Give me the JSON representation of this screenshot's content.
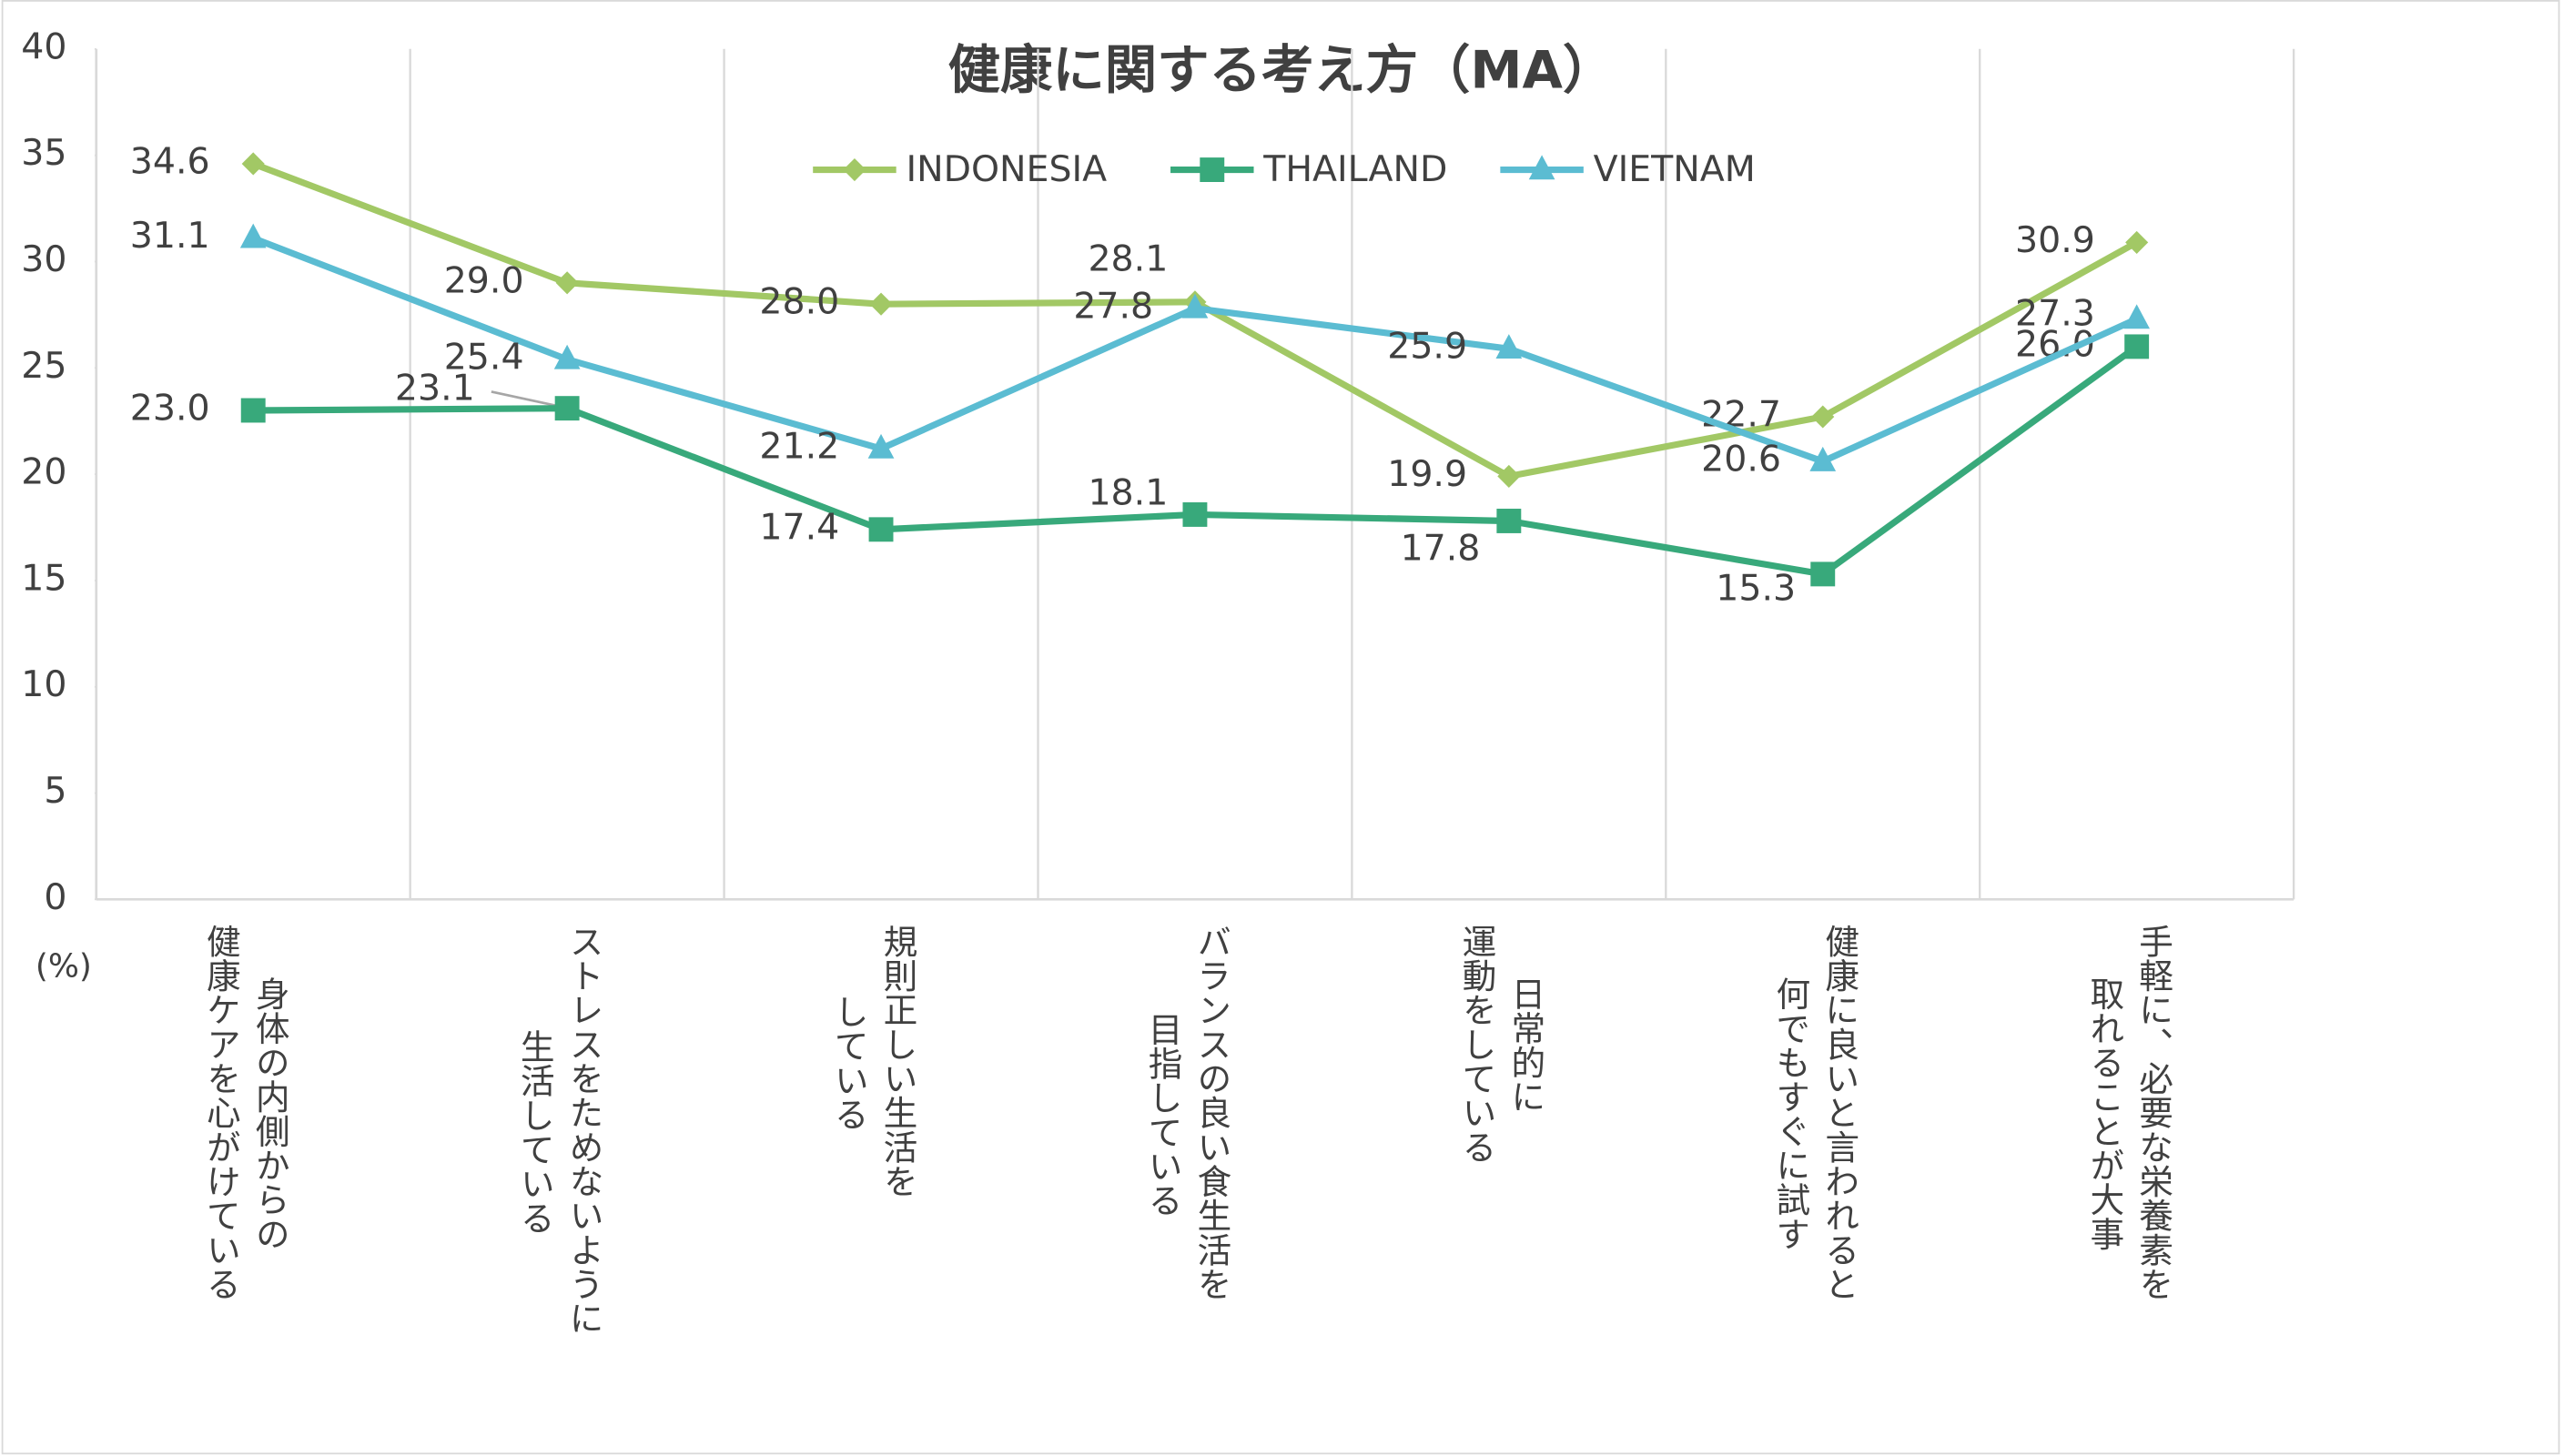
{
  "chart_data": {
    "type": "line",
    "title": "健康に関する考え方（MA）",
    "ylabel": "(%)",
    "categories": [
      [
        "身体の内側からの",
        "健康ケアを心がけている"
      ],
      [
        "ストレスをためないように",
        "生活している"
      ],
      [
        "規則正しい生活を",
        "している"
      ],
      [
        "バランスの良い食生活を",
        "目指している"
      ],
      [
        "日常的に",
        "運動をしている"
      ],
      [
        "健康に良いと言われると",
        "何でもすぐに試す"
      ],
      [
        "手軽に、必要な栄養素を",
        "取れることが大事"
      ]
    ],
    "series": [
      {
        "name": "INDONESIA",
        "color": "#a2c865",
        "marker": "diamond",
        "values": [
          34.6,
          29.0,
          28.0,
          28.1,
          19.9,
          22.7,
          30.9
        ],
        "value_labels": [
          "34.6",
          "29.0",
          "28.0",
          "28.1",
          "19.9",
          "22.7",
          "30.9"
        ]
      },
      {
        "name": "THAILAND",
        "color": "#38a97b",
        "marker": "square",
        "values": [
          23.0,
          23.1,
          17.4,
          18.1,
          17.8,
          15.3,
          26.0
        ],
        "value_labels": [
          "23.0",
          "23.1",
          "17.4",
          "18.1",
          "17.8",
          "15.3",
          "26.0"
        ]
      },
      {
        "name": "VIETNAM",
        "color": "#5bbcd2",
        "marker": "triangle",
        "values": [
          31.1,
          25.4,
          21.2,
          27.8,
          25.9,
          20.6,
          27.3
        ],
        "value_labels": [
          "31.1",
          "25.4",
          "21.2",
          "27.8",
          "25.9",
          "20.6",
          "27.3"
        ]
      }
    ],
    "ylim": [
      0,
      40
    ],
    "yticks": [
      0,
      5,
      10,
      15,
      20,
      25,
      30,
      35,
      40
    ],
    "grid": "category",
    "legend": "top"
  }
}
